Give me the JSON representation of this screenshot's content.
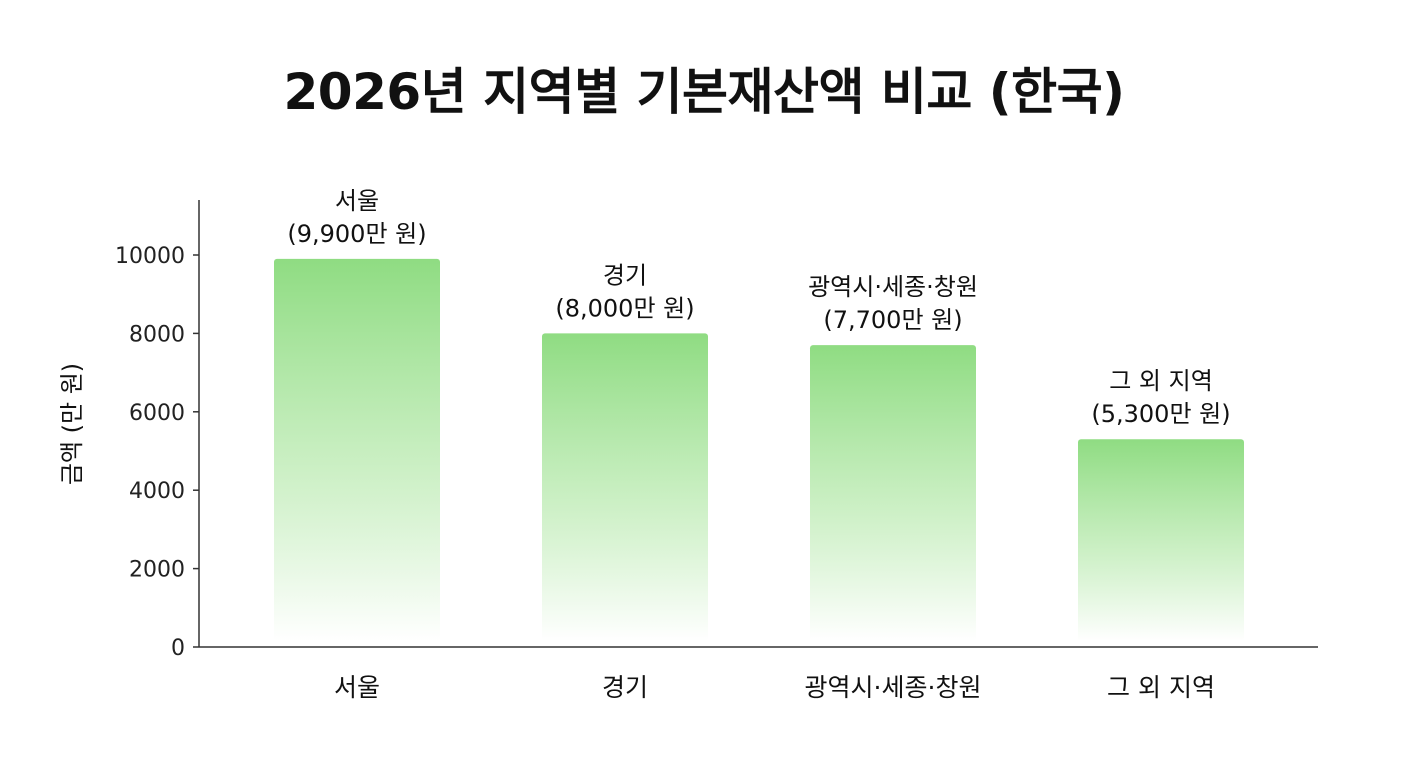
{
  "chart_data": {
    "type": "bar",
    "title": "2026년 지역별 기본재산액 비교 (한국)",
    "xlabel": "",
    "ylabel": "금액 (만 원)",
    "ylim": [
      0,
      11200
    ],
    "yticks": [
      0,
      2000,
      4000,
      6000,
      8000,
      10000
    ],
    "grid": false,
    "categories": [
      "서울",
      "경기",
      "광역시·세종·창원",
      "그 외 지역"
    ],
    "values": [
      9900,
      8000,
      7700,
      5300
    ],
    "data_labels": [
      {
        "name": "서울",
        "value": "(9,900만 원)"
      },
      {
        "name": "경기",
        "value": "(8,000만 원)"
      },
      {
        "name": "광역시·세종·창원",
        "value": "(7,700만 원)"
      },
      {
        "name": "그 외 지역",
        "value": "(5,300만 원)"
      }
    ],
    "bar_color_top": "#8fdc82",
    "bar_color_bottom": "#ffffff"
  }
}
